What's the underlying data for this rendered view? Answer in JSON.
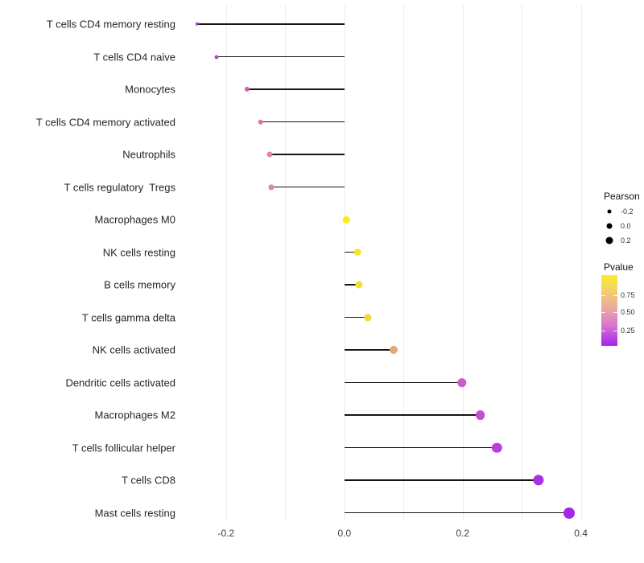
{
  "chart_data": {
    "type": "scatter",
    "variant": "lollipop",
    "title": "",
    "xlabel": "",
    "ylabel": "",
    "grid": "vertical light-gray, minor step 0.1",
    "baseline": 0,
    "x_axis": {
      "xlim": [
        -0.2815,
        0.4115
      ],
      "major_ticks": [
        -0.2,
        0.0,
        0.2,
        0.4
      ],
      "major_tick_labels": [
        "-0.2",
        "0.0",
        "0.2",
        "0.4"
      ],
      "minor_tick_step": 0.1
    },
    "rows": [
      {
        "label": "T cells CD4 memory resting",
        "pearson": -0.249,
        "color": "#9d43c6",
        "radius": 2.2
      },
      {
        "label": "T cells CD4 naive",
        "pearson": -0.216,
        "color": "#b04cc3",
        "radius": 2.5
      },
      {
        "label": "Monocytes",
        "pearson": -0.165,
        "color": "#ca62a8",
        "radius": 3.1
      },
      {
        "label": "T cells CD4 memory activated",
        "pearson": -0.142,
        "color": "#d678a2",
        "radius": 3.3
      },
      {
        "label": "Neutrophils",
        "pearson": -0.126,
        "color": "#dc8793",
        "radius": 3.5
      },
      {
        "label": "T cells regulatory  Tregs",
        "pearson": -0.124,
        "color": "#dc8a8c",
        "radius": 3.6
      },
      {
        "label": "Macrophages M0",
        "pearson": 0.003,
        "color": "#f6ed1e",
        "radius": 4.3
      },
      {
        "label": "NK cells resting",
        "pearson": 0.022,
        "color": "#f4e32a",
        "radius": 4.4
      },
      {
        "label": "B cells memory",
        "pearson": 0.025,
        "color": "#f4e02e",
        "radius": 4.5
      },
      {
        "label": "T cells gamma delta",
        "pearson": 0.04,
        "color": "#f1d83a",
        "radius": 4.6
      },
      {
        "label": "NK cells activated",
        "pearson": 0.083,
        "color": "#e5a873",
        "radius": 5.0
      },
      {
        "label": "Dendritic cells activated",
        "pearson": 0.199,
        "color": "#ca5bc7",
        "radius": 5.7
      },
      {
        "label": "Macrophages M2",
        "pearson": 0.23,
        "color": "#c34cd3",
        "radius": 5.9
      },
      {
        "label": "T cells follicular helper",
        "pearson": 0.258,
        "color": "#b93edd",
        "radius": 6.2
      },
      {
        "label": "T cells CD8",
        "pearson": 0.328,
        "color": "#ab2fe5",
        "radius": 6.6
      },
      {
        "label": "Mast cells resting",
        "pearson": 0.38,
        "color": "#a326e9",
        "radius": 7.0
      }
    ],
    "legend_size": {
      "title": "Pearson",
      "dot_color": "#000000",
      "entries": [
        {
          "label": "-0.2",
          "radius": 2.5
        },
        {
          "label": "0.0",
          "radius": 3.5
        },
        {
          "label": "0.2",
          "radius": 4.5
        }
      ],
      "position": "right"
    },
    "legend_color": {
      "title": "Pvalue",
      "labels": [
        "0.75",
        "0.50",
        "0.25"
      ],
      "gradient_top_to_bottom": [
        {
          "color": "#f9ef2c",
          "pos": 0
        },
        {
          "color": "#f2cb74",
          "pos": 25
        },
        {
          "color": "#e9a3a5",
          "pos": 50
        },
        {
          "color": "#d873cf",
          "pos": 72
        },
        {
          "color": "#a324ee",
          "pos": 100
        }
      ],
      "position": "right"
    },
    "style_colors": {
      "grid": "#ececec",
      "segment": "#151515",
      "axis_text": "#3d3d3d",
      "category_text": "#262626",
      "background": "#ffffff"
    }
  }
}
